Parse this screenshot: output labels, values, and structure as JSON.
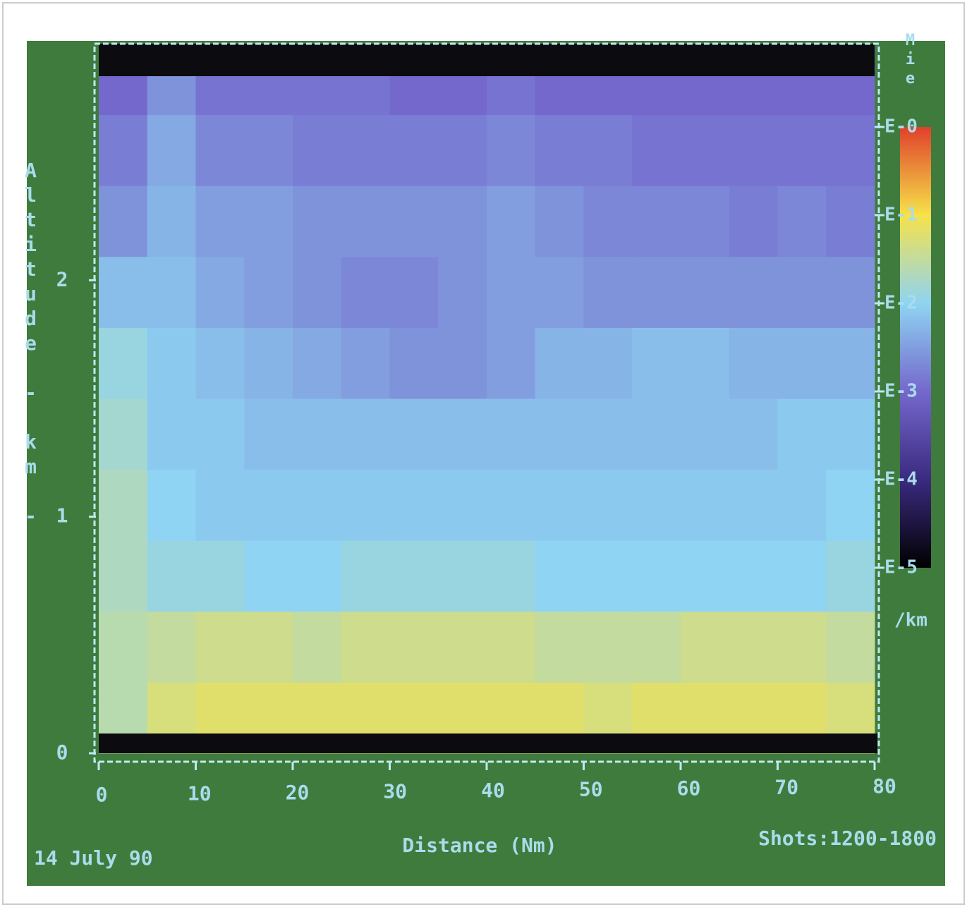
{
  "chart_data": {
    "type": "heatmap",
    "x_label": "Distance (Nm)",
    "y_label": "Altitude - km -",
    "footer_left": "14 July 90",
    "footer_right": "Shots:1200-1800",
    "xlim": [
      0,
      80
    ],
    "ylim": [
      0,
      3
    ],
    "xticks": [
      0,
      10,
      20,
      30,
      40,
      50,
      60,
      70,
      80
    ],
    "yticks": [
      0,
      1,
      2
    ],
    "x_bins": [
      0,
      5,
      10,
      15,
      20,
      25,
      30,
      35,
      40,
      45,
      50,
      55,
      60,
      65,
      70,
      75,
      80
    ],
    "y_bins": [
      0,
      0.3,
      0.6,
      0.9,
      1.2,
      1.5,
      1.8,
      2.1,
      2.4,
      2.7,
      3.0
    ],
    "z": [
      [
        -1.6,
        -1.3,
        -1.2,
        -1.2,
        -1.2,
        -1.2,
        -1.2,
        -1.2,
        -1.2,
        -1.2,
        -1.3,
        -1.2,
        -1.2,
        -1.2,
        -1.2,
        -1.3
      ],
      [
        -1.6,
        -1.5,
        -1.4,
        -1.4,
        -1.5,
        -1.4,
        -1.4,
        -1.4,
        -1.4,
        -1.5,
        -1.5,
        -1.5,
        -1.4,
        -1.4,
        -1.4,
        -1.5
      ],
      [
        -1.7,
        -1.9,
        -1.9,
        -2.0,
        -2.0,
        -1.9,
        -1.9,
        -1.9,
        -1.9,
        -2.0,
        -2.0,
        -2.0,
        -2.0,
        -2.0,
        -2.0,
        -1.9
      ],
      [
        -1.7,
        -2.0,
        -2.1,
        -2.1,
        -2.1,
        -2.1,
        -2.1,
        -2.1,
        -2.1,
        -2.1,
        -2.1,
        -2.1,
        -2.1,
        -2.1,
        -2.1,
        -2.0
      ],
      [
        -1.8,
        -2.1,
        -2.1,
        -2.2,
        -2.2,
        -2.2,
        -2.2,
        -2.2,
        -2.2,
        -2.2,
        -2.2,
        -2.2,
        -2.2,
        -2.2,
        -2.1,
        -2.1
      ],
      [
        -1.9,
        -2.1,
        -2.2,
        -2.3,
        -2.4,
        -2.5,
        -2.6,
        -2.6,
        -2.5,
        -2.3,
        -2.3,
        -2.2,
        -2.2,
        -2.3,
        -2.3,
        -2.3
      ],
      [
        -2.2,
        -2.2,
        -2.4,
        -2.5,
        -2.6,
        -2.7,
        -2.7,
        -2.6,
        -2.5,
        -2.5,
        -2.6,
        -2.6,
        -2.6,
        -2.6,
        -2.6,
        -2.6
      ],
      [
        -2.6,
        -2.3,
        -2.5,
        -2.5,
        -2.6,
        -2.6,
        -2.6,
        -2.6,
        -2.5,
        -2.6,
        -2.7,
        -2.7,
        -2.7,
        -2.8,
        -2.7,
        -2.8
      ],
      [
        -2.8,
        -2.4,
        -2.7,
        -2.7,
        -2.8,
        -2.8,
        -2.8,
        -2.8,
        -2.7,
        -2.8,
        -2.8,
        -2.9,
        -2.9,
        -2.9,
        -2.9,
        -2.9
      ],
      [
        -3.0,
        -2.6,
        -2.9,
        -2.9,
        -2.9,
        -2.9,
        -3.0,
        -3.0,
        -2.9,
        -3.0,
        -3.0,
        -3.0,
        -3.0,
        -3.0,
        -3.0,
        -3.0
      ]
    ],
    "colorbar": {
      "title": "Mie",
      "unit": "/km",
      "lim": [
        0,
        -5
      ],
      "ticks": [
        {
          "value": 0,
          "label": "E-0"
        },
        {
          "value": -1,
          "label": "E-1"
        },
        {
          "value": -2,
          "label": "E-2"
        },
        {
          "value": -3,
          "label": "E-3"
        },
        {
          "value": -4,
          "label": "E-4"
        },
        {
          "value": -5,
          "label": "E-5"
        }
      ],
      "colors": [
        "#e0402a",
        "#f6e24a",
        "#8fd4f2",
        "#7468cc",
        "#3b2a80",
        "#000000"
      ]
    }
  }
}
